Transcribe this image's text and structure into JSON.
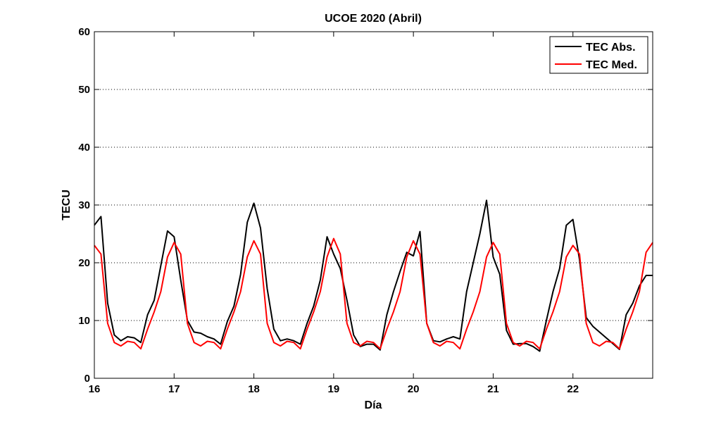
{
  "chart_data": {
    "type": "line",
    "title": "UCOE 2020 (Abril)",
    "xlabel": "Día",
    "ylabel": "TECU",
    "xlim": [
      16,
      23
    ],
    "ylim": [
      0,
      60
    ],
    "xticks": [
      16,
      17,
      18,
      19,
      20,
      21,
      22
    ],
    "yticks": [
      0,
      10,
      20,
      30,
      40,
      50,
      60
    ],
    "grid": "horizontal dotted",
    "legend_position": "top-right",
    "series": [
      {
        "name": "TEC Abs.",
        "color": "#000000",
        "x": [
          16.0,
          16.083,
          16.167,
          16.25,
          16.333,
          16.417,
          16.5,
          16.583,
          16.667,
          16.75,
          16.833,
          16.917,
          17.0,
          17.083,
          17.167,
          17.25,
          17.333,
          17.417,
          17.5,
          17.583,
          17.667,
          17.75,
          17.833,
          17.917,
          18.0,
          18.083,
          18.167,
          18.25,
          18.333,
          18.417,
          18.5,
          18.583,
          18.667,
          18.75,
          18.833,
          18.917,
          19.0,
          19.083,
          19.167,
          19.25,
          19.333,
          19.417,
          19.5,
          19.583,
          19.667,
          19.75,
          19.833,
          19.917,
          20.0,
          20.083,
          20.167,
          20.25,
          20.333,
          20.417,
          20.5,
          20.583,
          20.667,
          20.75,
          20.833,
          20.917,
          21.0,
          21.083,
          21.167,
          21.25,
          21.333,
          21.417,
          21.5,
          21.583,
          21.667,
          21.75,
          21.833,
          21.917,
          22.0,
          22.083,
          22.167,
          22.25,
          22.333,
          22.417,
          22.5,
          22.583,
          22.667,
          22.75,
          22.833,
          22.917,
          23.0
        ],
        "y": [
          26.5,
          28.0,
          13.0,
          7.5,
          6.5,
          7.2,
          7.0,
          6.2,
          11.0,
          13.5,
          19.5,
          25.5,
          24.5,
          17.0,
          10.0,
          8.0,
          7.8,
          7.2,
          6.8,
          5.9,
          9.8,
          12.5,
          18.0,
          27.0,
          30.3,
          26.0,
          15.5,
          8.5,
          6.5,
          6.8,
          6.5,
          5.9,
          9.5,
          12.5,
          17.0,
          24.5,
          21.5,
          19.0,
          13.5,
          7.5,
          5.5,
          5.9,
          5.9,
          4.9,
          11.0,
          15.0,
          18.5,
          21.8,
          21.2,
          25.4,
          9.5,
          6.5,
          6.3,
          6.8,
          7.2,
          6.8,
          15.0,
          20.0,
          25.0,
          30.8,
          21.0,
          18.0,
          8.3,
          5.9,
          6.0,
          6.0,
          5.5,
          4.7,
          10.0,
          15.0,
          19.0,
          26.5,
          27.5,
          20.5,
          10.5,
          9.0,
          8.0,
          7.0,
          6.0,
          5.0,
          11.0,
          13.0,
          16.0,
          17.8,
          17.8
        ]
      },
      {
        "name": "TEC Med.",
        "color": "#ff0000",
        "x": [
          16.0,
          16.083,
          16.167,
          16.25,
          16.333,
          16.417,
          16.5,
          16.583,
          16.667,
          16.75,
          16.833,
          16.917,
          17.0,
          17.083,
          17.167,
          17.25,
          17.333,
          17.417,
          17.5,
          17.583,
          17.667,
          17.75,
          17.833,
          17.917,
          18.0,
          18.083,
          18.167,
          18.25,
          18.333,
          18.417,
          18.5,
          18.583,
          18.667,
          18.75,
          18.833,
          18.917,
          19.0,
          19.083,
          19.167,
          19.25,
          19.333,
          19.417,
          19.5,
          19.583,
          19.667,
          19.75,
          19.833,
          19.917,
          20.0,
          20.083,
          20.167,
          20.25,
          20.333,
          20.417,
          20.5,
          20.583,
          20.667,
          20.75,
          20.833,
          20.917,
          21.0,
          21.083,
          21.167,
          21.25,
          21.333,
          21.417,
          21.5,
          21.583,
          21.667,
          21.75,
          21.833,
          21.917,
          22.0,
          22.083,
          22.167,
          22.25,
          22.333,
          22.417,
          22.5,
          22.583,
          22.667,
          22.75,
          22.833,
          22.917,
          23.0
        ],
        "y": [
          23.0,
          21.5,
          9.5,
          6.2,
          5.6,
          6.4,
          6.2,
          5.1,
          8.5,
          11.5,
          15.0,
          21.0,
          23.5,
          21.5,
          9.5,
          6.2,
          5.6,
          6.4,
          6.2,
          5.1,
          8.5,
          11.5,
          15.0,
          21.0,
          23.8,
          21.5,
          9.5,
          6.2,
          5.6,
          6.4,
          6.2,
          5.1,
          8.5,
          11.5,
          15.0,
          21.0,
          24.2,
          21.5,
          9.5,
          6.2,
          5.6,
          6.4,
          6.2,
          5.1,
          8.5,
          11.5,
          15.0,
          21.0,
          23.8,
          21.5,
          9.5,
          6.2,
          5.6,
          6.4,
          6.2,
          5.1,
          8.5,
          11.5,
          15.0,
          21.0,
          23.5,
          21.5,
          9.5,
          6.2,
          5.6,
          6.4,
          6.2,
          5.1,
          8.5,
          11.5,
          15.0,
          21.0,
          23.0,
          21.5,
          9.5,
          6.2,
          5.6,
          6.4,
          6.2,
          5.1,
          8.5,
          11.5,
          15.0,
          21.8,
          23.5
        ]
      }
    ]
  }
}
